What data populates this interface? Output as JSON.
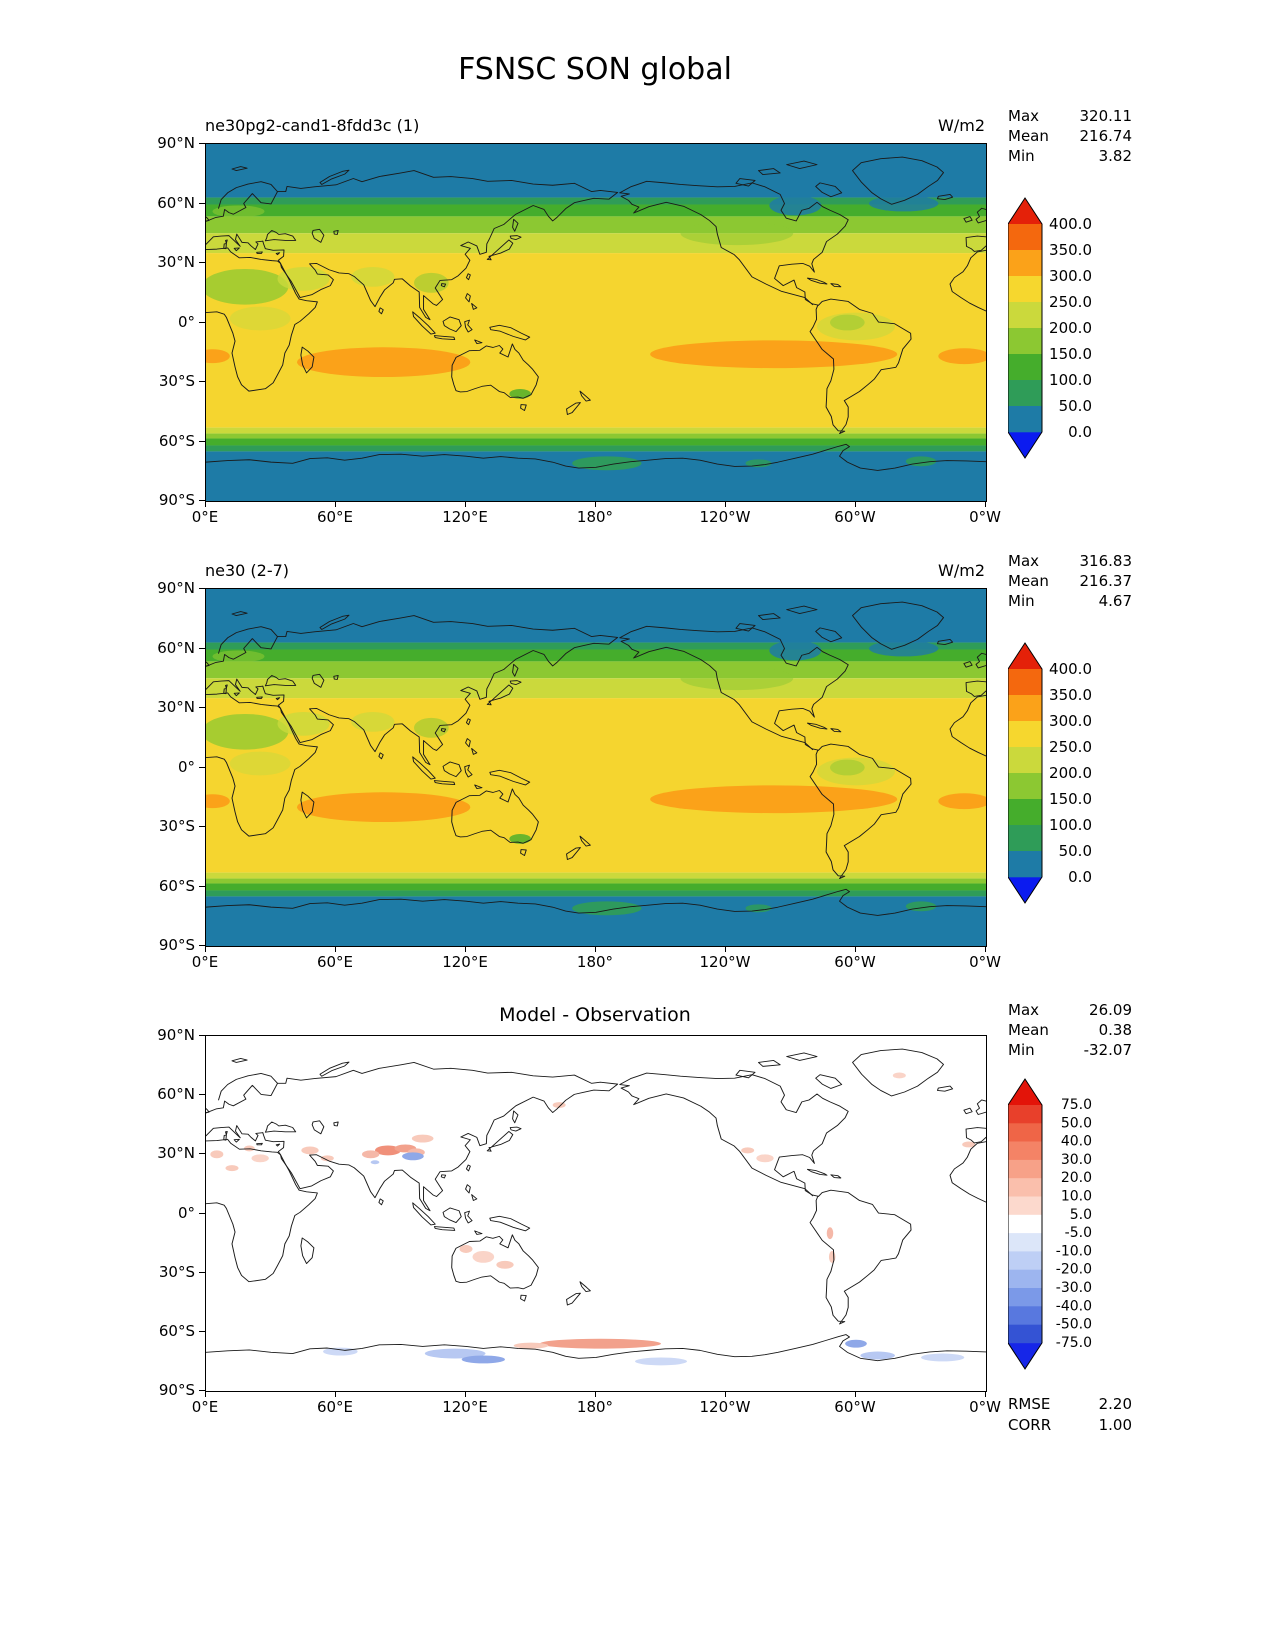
{
  "title": "FSNSC SON global",
  "axes": {
    "lat_ticks": [
      "90°N",
      "60°N",
      "30°N",
      "0°",
      "30°S",
      "60°S",
      "90°S"
    ],
    "lon_ticks": [
      "0°E",
      "60°E",
      "120°E",
      "180°",
      "120°W",
      "60°W",
      "0°W"
    ]
  },
  "panels": [
    {
      "subtitle": "ne30pg2-cand1-8fdd3c (1)",
      "units": "W/m2",
      "stats": [
        {
          "label": "Max",
          "value": "320.11"
        },
        {
          "label": "Mean",
          "value": "216.74"
        },
        {
          "label": "Min",
          "value": "3.82"
        }
      ],
      "colorbar": {
        "ticks": [
          "400.0",
          "350.0",
          "300.0",
          "250.0",
          "200.0",
          "150.0",
          "100.0",
          "50.0",
          "0.0"
        ],
        "segment_colors": [
          "#f4680e",
          "#fba219",
          "#f6d72e",
          "#cbd93c",
          "#8cc832",
          "#45ad2c",
          "#2f9c58",
          "#1e7ba6"
        ],
        "arrow_top": "#e42109",
        "arrow_bottom": "#0b1bf0"
      }
    },
    {
      "subtitle": "ne30 (2-7)",
      "units": "W/m2",
      "stats": [
        {
          "label": "Max",
          "value": "316.83"
        },
        {
          "label": "Mean",
          "value": "216.37"
        },
        {
          "label": "Min",
          "value": "4.67"
        }
      ],
      "colorbar": {
        "ticks": [
          "400.0",
          "350.0",
          "300.0",
          "250.0",
          "200.0",
          "150.0",
          "100.0",
          "50.0",
          "0.0"
        ],
        "segment_colors": [
          "#f4680e",
          "#fba219",
          "#f6d72e",
          "#cbd93c",
          "#8cc832",
          "#45ad2c",
          "#2f9c58",
          "#1e7ba6"
        ],
        "arrow_top": "#e42109",
        "arrow_bottom": "#0b1bf0"
      }
    },
    {
      "subtitle": "Model - Observation",
      "units": "",
      "stats": [
        {
          "label": "Max",
          "value": "26.09"
        },
        {
          "label": "Mean",
          "value": "0.38"
        },
        {
          "label": "Min",
          "value": "-32.07"
        }
      ],
      "extra_stats": [
        {
          "label": "RMSE",
          "value": "2.20"
        },
        {
          "label": "CORR",
          "value": "1.00"
        }
      ],
      "colorbar": {
        "ticks": [
          "75.0",
          "50.0",
          "40.0",
          "30.0",
          "20.0",
          "10.0",
          "5.0",
          "-5.0",
          "-10.0",
          "-20.0",
          "-30.0",
          "-40.0",
          "-50.0",
          "-75.0"
        ],
        "segment_colors": [
          "#e8402b",
          "#ef6547",
          "#f48366",
          "#f7a188",
          "#fabfac",
          "#fcd9cd",
          "#ffffff",
          "#dce6f9",
          "#becff5",
          "#9db5ef",
          "#7b99e8",
          "#5878df",
          "#3453d4"
        ],
        "arrow_top": "#e31409",
        "arrow_bottom": "#1626e8"
      }
    }
  ],
  "chart_data": [
    {
      "type": "heatmap",
      "title": "ne30pg2-cand1-8fdd3c (1)",
      "units": "W/m2",
      "projection": "equirectangular global, longitude 0E to 0W, latitude 90N to 90S",
      "stats": {
        "max": 320.11,
        "mean": 216.74,
        "min": 3.82
      },
      "contour_levels": [
        0,
        50,
        100,
        150,
        200,
        250,
        300,
        350,
        400
      ],
      "zonal_profile": {
        "lat": [
          90,
          70,
          62,
          55,
          48,
          40,
          30,
          15,
          0,
          -15,
          -25,
          -40,
          -52,
          -58,
          -65,
          -90
        ],
        "value": [
          25,
          40,
          110,
          170,
          205,
          230,
          255,
          275,
          280,
          305,
          320,
          275,
          240,
          150,
          45,
          30
        ]
      },
      "notes": "Zonally banded shortwave clear-sky net surface flux; orange maxima (300-350) over subtropical southern Indian, Pacific and Atlantic oceans; blue-teal (<50) poleward of ~63 degrees."
    },
    {
      "type": "heatmap",
      "title": "ne30 (2-7)",
      "units": "W/m2",
      "projection": "equirectangular global, longitude 0E to 0W, latitude 90N to 90S",
      "stats": {
        "max": 316.83,
        "mean": 216.37,
        "min": 4.67
      },
      "contour_levels": [
        0,
        50,
        100,
        150,
        200,
        250,
        300,
        350,
        400
      ],
      "zonal_profile": {
        "lat": [
          90,
          70,
          62,
          55,
          48,
          40,
          30,
          15,
          0,
          -15,
          -25,
          -40,
          -52,
          -58,
          -65,
          -90
        ],
        "value": [
          25,
          40,
          110,
          170,
          205,
          230,
          255,
          275,
          280,
          305,
          318,
          275,
          240,
          150,
          45,
          30
        ]
      },
      "notes": "Nearly identical pattern to panel 1."
    },
    {
      "type": "heatmap",
      "title": "Model - Observation",
      "units": "W/m2",
      "stats": {
        "max": 26.09,
        "mean": 0.38,
        "min": -32.07,
        "rmse": 2.2,
        "corr": 1.0
      },
      "contour_levels": [
        -75,
        -50,
        -40,
        -30,
        -20,
        -10,
        -5,
        5,
        10,
        20,
        30,
        40,
        50,
        75
      ],
      "notes": "Difference mostly within +/-5 (white); small positive (pink/red) anomalies over Tibetan Plateau, North Africa, Middle East, Australia and along the Antarctic coast near 180; small negative (blue) anomalies over Himalaya and Antarctic coastal waters."
    }
  ]
}
